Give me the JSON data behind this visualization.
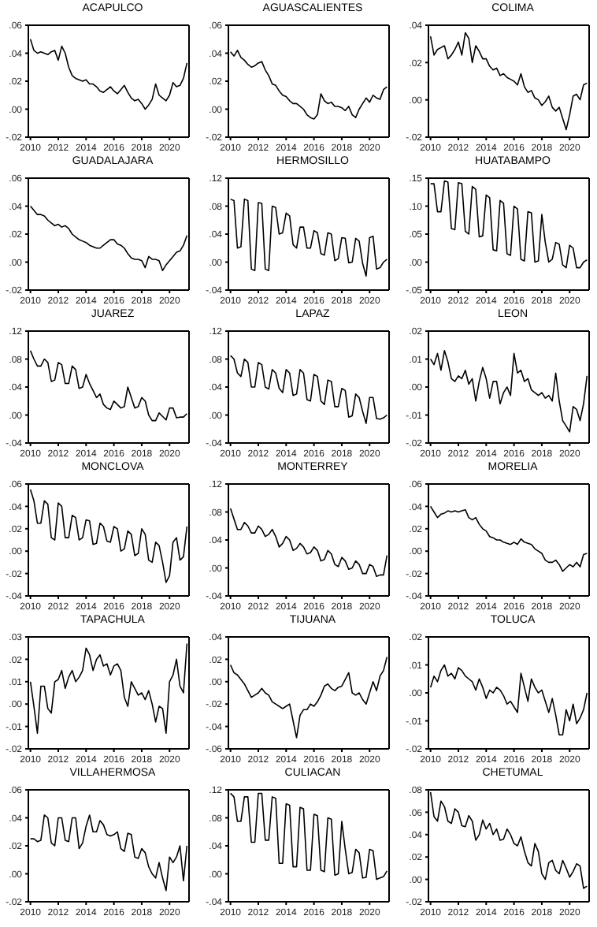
{
  "chart_data": [
    {
      "type": "line",
      "title": "ACAPULCO",
      "color": "#000000",
      "ylim": [
        -0.02,
        0.06
      ],
      "yticks": [
        {
          "value": -0.02,
          "label": "-.02"
        },
        {
          "value": 0,
          "label": ".00"
        },
        {
          "value": 0.02,
          "label": ".02"
        },
        {
          "value": 0.04,
          "label": ".04"
        },
        {
          "value": 0.06,
          "label": ".06"
        }
      ],
      "xlim": [
        2009.85,
        2021.4
      ],
      "xticks": [
        2010,
        2012,
        2014,
        2016,
        2018,
        2020
      ],
      "x": [
        2010,
        2010.25,
        2010.5,
        2010.75,
        2011,
        2011.25,
        2011.5,
        2011.75,
        2012,
        2012.25,
        2012.5,
        2012.75,
        2013,
        2013.25,
        2013.5,
        2013.75,
        2014,
        2014.25,
        2014.5,
        2014.75,
        2015,
        2015.25,
        2015.5,
        2015.75,
        2016,
        2016.25,
        2016.5,
        2016.75,
        2017,
        2017.25,
        2017.5,
        2017.75,
        2018,
        2018.25,
        2018.5,
        2018.75,
        2019,
        2019.25,
        2019.5,
        2019.75,
        2020,
        2020.25,
        2020.5,
        2020.75,
        2021,
        2021.25
      ],
      "values": [
        0.05,
        0.042,
        0.04,
        0.041,
        0.04,
        0.039,
        0.041,
        0.042,
        0.035,
        0.045,
        0.04,
        0.03,
        0.024,
        0.022,
        0.021,
        0.02,
        0.021,
        0.018,
        0.018,
        0.016,
        0.013,
        0.012,
        0.014,
        0.016,
        0.013,
        0.011,
        0.014,
        0.017,
        0.012,
        0.008,
        0.006,
        0.007,
        0.004,
        0,
        0.003,
        0.007,
        0.018,
        0.01,
        0.008,
        0.006,
        0.01,
        0.019,
        0.016,
        0.017,
        0.022,
        0.033
      ]
    },
    {
      "type": "line",
      "title": "AGUASCALIENTES",
      "color": "#000000",
      "ylim": [
        -0.02,
        0.06
      ],
      "yticks": [
        {
          "value": -0.02,
          "label": "-.02"
        },
        {
          "value": 0,
          "label": ".00"
        },
        {
          "value": 0.02,
          "label": ".02"
        },
        {
          "value": 0.04,
          "label": ".04"
        },
        {
          "value": 0.06,
          "label": ".06"
        }
      ],
      "xlim": [
        2009.85,
        2021.4
      ],
      "xticks": [
        2010,
        2012,
        2014,
        2016,
        2018,
        2020
      ],
      "x": [
        2010,
        2010.25,
        2010.5,
        2010.75,
        2011,
        2011.25,
        2011.5,
        2011.75,
        2012,
        2012.25,
        2012.5,
        2012.75,
        2013,
        2013.25,
        2013.5,
        2013.75,
        2014,
        2014.25,
        2014.5,
        2014.75,
        2015,
        2015.25,
        2015.5,
        2015.75,
        2016,
        2016.25,
        2016.5,
        2016.75,
        2017,
        2017.25,
        2017.5,
        2017.75,
        2018,
        2018.25,
        2018.5,
        2018.75,
        2019,
        2019.25,
        2019.5,
        2019.75,
        2020,
        2020.25,
        2020.5,
        2020.75,
        2021,
        2021.25
      ],
      "values": [
        0.041,
        0.038,
        0.042,
        0.037,
        0.035,
        0.032,
        0.03,
        0.031,
        0.033,
        0.034,
        0.028,
        0.024,
        0.018,
        0.017,
        0.013,
        0.01,
        0.009,
        0.006,
        0.004,
        0.004,
        0.002,
        0,
        -0.004,
        -0.006,
        -0.007,
        -0.004,
        0.011,
        0.006,
        0.004,
        0.005,
        0.002,
        0.002,
        0.001,
        -0.001,
        0.002,
        -0.004,
        -0.006,
        0,
        0.004,
        0.008,
        0.005,
        0.01,
        0.008,
        0.007,
        0.014,
        0.016
      ]
    },
    {
      "type": "line",
      "title": "COLIMA",
      "color": "#000000",
      "ylim": [
        -0.02,
        0.04
      ],
      "yticks": [
        {
          "value": -0.02,
          "label": "-.02"
        },
        {
          "value": 0,
          "label": ".00"
        },
        {
          "value": 0.02,
          "label": ".02"
        },
        {
          "value": 0.04,
          "label": ".04"
        }
      ],
      "xlim": [
        2009.85,
        2021.4
      ],
      "xticks": [
        2010,
        2012,
        2014,
        2016,
        2018,
        2020
      ],
      "x": [
        2010,
        2010.25,
        2010.5,
        2010.75,
        2011,
        2011.25,
        2011.5,
        2011.75,
        2012,
        2012.25,
        2012.5,
        2012.75,
        2013,
        2013.25,
        2013.5,
        2013.75,
        2014,
        2014.25,
        2014.5,
        2014.75,
        2015,
        2015.25,
        2015.5,
        2015.75,
        2016,
        2016.25,
        2016.5,
        2016.75,
        2017,
        2017.25,
        2017.5,
        2017.75,
        2018,
        2018.25,
        2018.5,
        2018.75,
        2019,
        2019.25,
        2019.5,
        2019.75,
        2020,
        2020.25,
        2020.5,
        2020.75,
        2021,
        2021.25
      ],
      "values": [
        0.034,
        0.024,
        0.027,
        0.028,
        0.029,
        0.022,
        0.024,
        0.027,
        0.031,
        0.024,
        0.036,
        0.033,
        0.02,
        0.029,
        0.026,
        0.022,
        0.022,
        0.018,
        0.016,
        0.017,
        0.013,
        0.014,
        0.012,
        0.011,
        0.01,
        0.008,
        0.014,
        0.007,
        0.004,
        0.005,
        0.001,
        0,
        -0.003,
        -0.001,
        0.002,
        -0.004,
        -0.006,
        -0.004,
        -0.01,
        -0.016,
        -0.008,
        0.002,
        0.003,
        0,
        0.008,
        0.009
      ]
    },
    {
      "type": "line",
      "title": "GUADALAJARA",
      "color": "#000000",
      "ylim": [
        -0.02,
        0.06
      ],
      "yticks": [
        {
          "value": -0.02,
          "label": "-.02"
        },
        {
          "value": 0,
          "label": ".00"
        },
        {
          "value": 0.02,
          "label": ".02"
        },
        {
          "value": 0.04,
          "label": ".04"
        },
        {
          "value": 0.06,
          "label": ".06"
        }
      ],
      "xlim": [
        2009.85,
        2021.4
      ],
      "xticks": [
        2010,
        2012,
        2014,
        2016,
        2018,
        2020
      ],
      "x": [
        2010,
        2010.25,
        2010.5,
        2010.75,
        2011,
        2011.25,
        2011.5,
        2011.75,
        2012,
        2012.25,
        2012.5,
        2012.75,
        2013,
        2013.25,
        2013.5,
        2013.75,
        2014,
        2014.25,
        2014.5,
        2014.75,
        2015,
        2015.25,
        2015.5,
        2015.75,
        2016,
        2016.25,
        2016.5,
        2016.75,
        2017,
        2017.25,
        2017.5,
        2017.75,
        2018,
        2018.25,
        2018.5,
        2018.75,
        2019,
        2019.25,
        2019.5,
        2019.75,
        2020,
        2020.25,
        2020.5,
        2020.75,
        2021,
        2021.25
      ],
      "values": [
        0.04,
        0.037,
        0.034,
        0.034,
        0.033,
        0.03,
        0.028,
        0.026,
        0.027,
        0.025,
        0.026,
        0.024,
        0.02,
        0.018,
        0.016,
        0.015,
        0.014,
        0.012,
        0.011,
        0.01,
        0.01,
        0.012,
        0.014,
        0.016,
        0.016,
        0.013,
        0.012,
        0.01,
        0.006,
        0.003,
        0.002,
        0.002,
        0.001,
        -0.004,
        0.004,
        0.002,
        0.002,
        0.001,
        -0.006,
        -0.002,
        0.001,
        0.004,
        0.007,
        0.008,
        0.012,
        0.019
      ]
    },
    {
      "type": "line",
      "title": "HERMOSILLO",
      "color": "#000000",
      "ylim": [
        -0.04,
        0.12
      ],
      "yticks": [
        {
          "value": -0.04,
          "label": "-.04"
        },
        {
          "value": 0,
          "label": ".00"
        },
        {
          "value": 0.04,
          "label": ".04"
        },
        {
          "value": 0.08,
          "label": ".08"
        },
        {
          "value": 0.12,
          "label": ".12"
        }
      ],
      "xlim": [
        2009.85,
        2021.4
      ],
      "xticks": [
        2010,
        2012,
        2014,
        2016,
        2018,
        2020
      ],
      "x": [
        2010,
        2010.25,
        2010.5,
        2010.75,
        2011,
        2011.25,
        2011.5,
        2011.75,
        2012,
        2012.25,
        2012.5,
        2012.75,
        2013,
        2013.25,
        2013.5,
        2013.75,
        2014,
        2014.25,
        2014.5,
        2014.75,
        2015,
        2015.25,
        2015.5,
        2015.75,
        2016,
        2016.25,
        2016.5,
        2016.75,
        2017,
        2017.25,
        2017.5,
        2017.75,
        2018,
        2018.25,
        2018.5,
        2018.75,
        2019,
        2019.25,
        2019.5,
        2019.75,
        2020,
        2020.25,
        2020.5,
        2020.75,
        2021,
        2021.25
      ],
      "values": [
        0.09,
        0.088,
        0.02,
        0.022,
        0.09,
        0.088,
        -0.01,
        -0.012,
        0.085,
        0.084,
        -0.01,
        -0.012,
        0.08,
        0.078,
        0.04,
        0.042,
        0.07,
        0.066,
        0.025,
        0.02,
        0.05,
        0.05,
        0.02,
        0.02,
        0.045,
        0.042,
        0.012,
        0.01,
        0.042,
        0.04,
        0.002,
        0.005,
        0.035,
        0.034,
        -0.001,
        0,
        0.034,
        0.03,
        -0.002,
        -0.02,
        0.035,
        0.037,
        -0.01,
        -0.008,
        0,
        0.004
      ]
    },
    {
      "type": "line",
      "title": "HUATABAMPO",
      "color": "#000000",
      "ylim": [
        -0.05,
        0.15
      ],
      "yticks": [
        {
          "value": -0.05,
          "label": "-.05"
        },
        {
          "value": 0,
          "label": ".00"
        },
        {
          "value": 0.05,
          "label": ".05"
        },
        {
          "value": 0.1,
          "label": ".10"
        },
        {
          "value": 0.15,
          "label": ".15"
        }
      ],
      "xlim": [
        2009.85,
        2021.4
      ],
      "xticks": [
        2010,
        2012,
        2014,
        2016,
        2018,
        2020
      ],
      "x": [
        2010,
        2010.25,
        2010.5,
        2010.75,
        2011,
        2011.25,
        2011.5,
        2011.75,
        2012,
        2012.25,
        2012.5,
        2012.75,
        2013,
        2013.25,
        2013.5,
        2013.75,
        2014,
        2014.25,
        2014.5,
        2014.75,
        2015,
        2015.25,
        2015.5,
        2015.75,
        2016,
        2016.25,
        2016.5,
        2016.75,
        2017,
        2017.25,
        2017.5,
        2017.75,
        2018,
        2018.25,
        2018.5,
        2018.75,
        2019,
        2019.25,
        2019.5,
        2019.75,
        2020,
        2020.25,
        2020.5,
        2020.75,
        2021,
        2021.25
      ],
      "values": [
        0.14,
        0.14,
        0.09,
        0.09,
        0.145,
        0.143,
        0.06,
        0.058,
        0.142,
        0.14,
        0.055,
        0.05,
        0.135,
        0.13,
        0.045,
        0.047,
        0.12,
        0.115,
        0.022,
        0.02,
        0.11,
        0.105,
        0.015,
        0.012,
        0.1,
        0.095,
        0.005,
        0.002,
        0.09,
        0.088,
        0,
        0.002,
        0.085,
        0.035,
        0,
        0.005,
        0.035,
        0.032,
        -0.005,
        -0.01,
        0.03,
        0.025,
        -0.01,
        -0.01,
        0,
        0.004
      ]
    },
    {
      "type": "line",
      "title": "JUAREZ",
      "color": "#000000",
      "ylim": [
        -0.04,
        0.12
      ],
      "yticks": [
        {
          "value": -0.04,
          "label": "-.04"
        },
        {
          "value": 0,
          "label": ".00"
        },
        {
          "value": 0.04,
          "label": ".04"
        },
        {
          "value": 0.08,
          "label": ".08"
        },
        {
          "value": 0.12,
          "label": ".12"
        }
      ],
      "xlim": [
        2009.85,
        2021.4
      ],
      "xticks": [
        2010,
        2012,
        2014,
        2016,
        2018,
        2020
      ],
      "x": [
        2010,
        2010.25,
        2010.5,
        2010.75,
        2011,
        2011.25,
        2011.5,
        2011.75,
        2012,
        2012.25,
        2012.5,
        2012.75,
        2013,
        2013.25,
        2013.5,
        2013.75,
        2014,
        2014.25,
        2014.5,
        2014.75,
        2015,
        2015.25,
        2015.5,
        2015.75,
        2016,
        2016.25,
        2016.5,
        2016.75,
        2017,
        2017.25,
        2017.5,
        2017.75,
        2018,
        2018.25,
        2018.5,
        2018.75,
        2019,
        2019.25,
        2019.5,
        2019.75,
        2020,
        2020.25,
        2020.5,
        2020.75,
        2021,
        2021.25
      ],
      "values": [
        0.092,
        0.08,
        0.07,
        0.07,
        0.08,
        0.075,
        0.048,
        0.05,
        0.075,
        0.072,
        0.045,
        0.045,
        0.07,
        0.065,
        0.038,
        0.04,
        0.058,
        0.045,
        0.035,
        0.025,
        0.03,
        0.015,
        0.01,
        0.008,
        0.02,
        0.015,
        0.01,
        0.012,
        0.04,
        0.025,
        0.01,
        0.012,
        0.025,
        0.02,
        0,
        -0.008,
        -0.008,
        0.003,
        -0.002,
        -0.007,
        0.01,
        0.01,
        -0.004,
        -0.003,
        -0.003,
        0.002
      ]
    },
    {
      "type": "line",
      "title": "LAPAZ",
      "color": "#000000",
      "ylim": [
        -0.04,
        0.12
      ],
      "yticks": [
        {
          "value": -0.04,
          "label": "-.04"
        },
        {
          "value": 0,
          "label": ".00"
        },
        {
          "value": 0.04,
          "label": ".04"
        },
        {
          "value": 0.08,
          "label": ".08"
        },
        {
          "value": 0.12,
          "label": ".12"
        }
      ],
      "xlim": [
        2009.85,
        2021.4
      ],
      "xticks": [
        2010,
        2012,
        2014,
        2016,
        2018,
        2020
      ],
      "x": [
        2010,
        2010.25,
        2010.5,
        2010.75,
        2011,
        2011.25,
        2011.5,
        2011.75,
        2012,
        2012.25,
        2012.5,
        2012.75,
        2013,
        2013.25,
        2013.5,
        2013.75,
        2014,
        2014.25,
        2014.5,
        2014.75,
        2015,
        2015.25,
        2015.5,
        2015.75,
        2016,
        2016.25,
        2016.5,
        2016.75,
        2017,
        2017.25,
        2017.5,
        2017.75,
        2018,
        2018.25,
        2018.5,
        2018.75,
        2019,
        2019.25,
        2019.5,
        2019.75,
        2020,
        2020.25,
        2020.5,
        2020.75,
        2021,
        2021.25
      ],
      "values": [
        0.085,
        0.08,
        0.06,
        0.055,
        0.08,
        0.075,
        0.04,
        0.04,
        0.075,
        0.072,
        0.04,
        0.037,
        0.065,
        0.06,
        0.038,
        0.032,
        0.065,
        0.06,
        0.028,
        0.03,
        0.065,
        0.06,
        0.022,
        0.02,
        0.058,
        0.055,
        0.02,
        0.015,
        0.05,
        0.048,
        0.012,
        0.012,
        0.038,
        0.035,
        -0.003,
        -0.001,
        0.03,
        0.025,
        0.005,
        -0.012,
        0.025,
        0.025,
        -0.005,
        -0.006,
        -0.004,
        0
      ]
    },
    {
      "type": "line",
      "title": "LEON",
      "color": "#000000",
      "ylim": [
        -0.02,
        0.02
      ],
      "yticks": [
        {
          "value": -0.02,
          "label": "-.02"
        },
        {
          "value": -0.01,
          "label": "-.01"
        },
        {
          "value": 0,
          "label": ".00"
        },
        {
          "value": 0.01,
          "label": ".01"
        },
        {
          "value": 0.02,
          "label": ".02"
        }
      ],
      "xlim": [
        2009.85,
        2021.4
      ],
      "xticks": [
        2010,
        2012,
        2014,
        2016,
        2018,
        2020
      ],
      "x": [
        2010,
        2010.25,
        2010.5,
        2010.75,
        2011,
        2011.25,
        2011.5,
        2011.75,
        2012,
        2012.25,
        2012.5,
        2012.75,
        2013,
        2013.25,
        2013.5,
        2013.75,
        2014,
        2014.25,
        2014.5,
        2014.75,
        2015,
        2015.25,
        2015.5,
        2015.75,
        2016,
        2016.25,
        2016.5,
        2016.75,
        2017,
        2017.25,
        2017.5,
        2017.75,
        2018,
        2018.25,
        2018.5,
        2018.75,
        2019,
        2019.25,
        2019.5,
        2019.75,
        2020,
        2020.25,
        2020.5,
        2020.75,
        2021,
        2021.25
      ],
      "values": [
        0.01,
        0.008,
        0.012,
        0.006,
        0.013,
        0.009,
        0.003,
        0.002,
        0.004,
        0.003,
        0.006,
        0.001,
        0.003,
        -0.005,
        0.002,
        0.007,
        0.003,
        -0.004,
        0.002,
        0.002,
        -0.006,
        -0.002,
        0,
        -0.003,
        0.012,
        0.005,
        0.006,
        0.002,
        0.003,
        -0.001,
        -0.002,
        -0.003,
        -0.002,
        -0.004,
        -0.003,
        -0.005,
        0.005,
        -0.005,
        -0.012,
        -0.014,
        -0.016,
        -0.007,
        -0.008,
        -0.012,
        -0.006,
        0.004
      ]
    },
    {
      "type": "line",
      "title": "MONCLOVA",
      "color": "#000000",
      "ylim": [
        -0.04,
        0.06
      ],
      "yticks": [
        {
          "value": -0.04,
          "label": "-.04"
        },
        {
          "value": -0.02,
          "label": "-.02"
        },
        {
          "value": 0,
          "label": ".00"
        },
        {
          "value": 0.02,
          "label": ".02"
        },
        {
          "value": 0.04,
          "label": ".04"
        },
        {
          "value": 0.06,
          "label": ".06"
        }
      ],
      "xlim": [
        2009.85,
        2021.4
      ],
      "xticks": [
        2010,
        2012,
        2014,
        2016,
        2018,
        2020
      ],
      "x": [
        2010,
        2010.25,
        2010.5,
        2010.75,
        2011,
        2011.25,
        2011.5,
        2011.75,
        2012,
        2012.25,
        2012.5,
        2012.75,
        2013,
        2013.25,
        2013.5,
        2013.75,
        2014,
        2014.25,
        2014.5,
        2014.75,
        2015,
        2015.25,
        2015.5,
        2015.75,
        2016,
        2016.25,
        2016.5,
        2016.75,
        2017,
        2017.25,
        2017.5,
        2017.75,
        2018,
        2018.25,
        2018.5,
        2018.75,
        2019,
        2019.25,
        2019.5,
        2019.75,
        2020,
        2020.25,
        2020.5,
        2020.75,
        2021,
        2021.25
      ],
      "values": [
        0.055,
        0.045,
        0.025,
        0.025,
        0.045,
        0.042,
        0.012,
        0.01,
        0.043,
        0.04,
        0.012,
        0.012,
        0.032,
        0.03,
        0.01,
        0.012,
        0.028,
        0.027,
        0.006,
        0.007,
        0.025,
        0.022,
        0.009,
        0.008,
        0.022,
        0.02,
        0,
        0.002,
        0.018,
        0.015,
        -0.004,
        -0.002,
        0.02,
        0.015,
        -0.008,
        -0.01,
        0.008,
        0.005,
        -0.01,
        -0.028,
        -0.022,
        0.008,
        0.012,
        -0.008,
        -0.005,
        0.022
      ]
    },
    {
      "type": "line",
      "title": "MONTERREY",
      "color": "#000000",
      "ylim": [
        -0.04,
        0.12
      ],
      "yticks": [
        {
          "value": -0.04,
          "label": "-.04"
        },
        {
          "value": 0,
          "label": ".00"
        },
        {
          "value": 0.04,
          "label": ".04"
        },
        {
          "value": 0.08,
          "label": ".08"
        },
        {
          "value": 0.12,
          "label": ".12"
        }
      ],
      "xlim": [
        2009.85,
        2021.4
      ],
      "xticks": [
        2010,
        2012,
        2014,
        2016,
        2018,
        2020
      ],
      "x": [
        2010,
        2010.25,
        2010.5,
        2010.75,
        2011,
        2011.25,
        2011.5,
        2011.75,
        2012,
        2012.25,
        2012.5,
        2012.75,
        2013,
        2013.25,
        2013.5,
        2013.75,
        2014,
        2014.25,
        2014.5,
        2014.75,
        2015,
        2015.25,
        2015.5,
        2015.75,
        2016,
        2016.25,
        2016.5,
        2016.75,
        2017,
        2017.25,
        2017.5,
        2017.75,
        2018,
        2018.25,
        2018.5,
        2018.75,
        2019,
        2019.25,
        2019.5,
        2019.75,
        2020,
        2020.25,
        2020.5,
        2020.75,
        2021,
        2021.25
      ],
      "values": [
        0.085,
        0.07,
        0.055,
        0.055,
        0.065,
        0.06,
        0.05,
        0.05,
        0.06,
        0.055,
        0.045,
        0.048,
        0.055,
        0.045,
        0.03,
        0.035,
        0.045,
        0.04,
        0.025,
        0.028,
        0.035,
        0.03,
        0.02,
        0.022,
        0.03,
        0.025,
        0.01,
        0.012,
        0.025,
        0.02,
        0.005,
        0.002,
        0.015,
        0.01,
        -0.002,
        0,
        0.01,
        0.005,
        -0.008,
        -0.008,
        0.005,
        0.002,
        -0.012,
        -0.01,
        -0.01,
        0.018
      ]
    },
    {
      "type": "line",
      "title": "MORELIA",
      "color": "#000000",
      "ylim": [
        -0.04,
        0.06
      ],
      "yticks": [
        {
          "value": -0.04,
          "label": "-.04"
        },
        {
          "value": -0.02,
          "label": "-.02"
        },
        {
          "value": 0,
          "label": ".00"
        },
        {
          "value": 0.02,
          "label": ".02"
        },
        {
          "value": 0.04,
          "label": ".04"
        },
        {
          "value": 0.06,
          "label": ".06"
        }
      ],
      "xlim": [
        2009.85,
        2021.4
      ],
      "xticks": [
        2010,
        2012,
        2014,
        2016,
        2018,
        2020
      ],
      "x": [
        2010,
        2010.25,
        2010.5,
        2010.75,
        2011,
        2011.25,
        2011.5,
        2011.75,
        2012,
        2012.25,
        2012.5,
        2012.75,
        2013,
        2013.25,
        2013.5,
        2013.75,
        2014,
        2014.25,
        2014.5,
        2014.75,
        2015,
        2015.25,
        2015.5,
        2015.75,
        2016,
        2016.25,
        2016.5,
        2016.75,
        2017,
        2017.25,
        2017.5,
        2017.75,
        2018,
        2018.25,
        2018.5,
        2018.75,
        2019,
        2019.25,
        2019.5,
        2019.75,
        2020,
        2020.25,
        2020.5,
        2020.75,
        2021,
        2021.25
      ],
      "values": [
        0.04,
        0.035,
        0.03,
        0.033,
        0.034,
        0.036,
        0.035,
        0.036,
        0.035,
        0.036,
        0.037,
        0.03,
        0.028,
        0.03,
        0.024,
        0.02,
        0.018,
        0.013,
        0.012,
        0.01,
        0.01,
        0.008,
        0.007,
        0.006,
        0.008,
        0.006,
        0.011,
        0.008,
        0.007,
        0.006,
        0.002,
        0,
        -0.002,
        -0.008,
        -0.01,
        -0.01,
        -0.008,
        -0.012,
        -0.018,
        -0.015,
        -0.012,
        -0.014,
        -0.01,
        -0.014,
        -0.003,
        -0.002
      ]
    },
    {
      "type": "line",
      "title": "TAPACHULA",
      "color": "#000000",
      "ylim": [
        -0.02,
        0.03
      ],
      "yticks": [
        {
          "value": -0.02,
          "label": "-.02"
        },
        {
          "value": -0.01,
          "label": "-.01"
        },
        {
          "value": 0,
          "label": ".00"
        },
        {
          "value": 0.01,
          "label": ".01"
        },
        {
          "value": 0.02,
          "label": ".02"
        },
        {
          "value": 0.03,
          "label": ".03"
        }
      ],
      "xlim": [
        2009.85,
        2021.4
      ],
      "xticks": [
        2010,
        2012,
        2014,
        2016,
        2018,
        2020
      ],
      "x": [
        2010,
        2010.25,
        2010.5,
        2010.75,
        2011,
        2011.25,
        2011.5,
        2011.75,
        2012,
        2012.25,
        2012.5,
        2012.75,
        2013,
        2013.25,
        2013.5,
        2013.75,
        2014,
        2014.25,
        2014.5,
        2014.75,
        2015,
        2015.25,
        2015.5,
        2015.75,
        2016,
        2016.25,
        2016.5,
        2016.75,
        2017,
        2017.25,
        2017.5,
        2017.75,
        2018,
        2018.25,
        2018.5,
        2018.75,
        2019,
        2019.25,
        2019.5,
        2019.75,
        2020,
        2020.25,
        2020.5,
        2020.75,
        2021,
        2021.25
      ],
      "values": [
        0.01,
        -0.001,
        -0.013,
        0.008,
        0.008,
        -0.002,
        -0.004,
        0.01,
        0.011,
        0.015,
        0.007,
        0.012,
        0.015,
        0.01,
        0.012,
        0.015,
        0.025,
        0.022,
        0.015,
        0.02,
        0.022,
        0.017,
        0.018,
        0.013,
        0.017,
        0.018,
        0.015,
        0.003,
        -0.001,
        0.01,
        0.007,
        0.004,
        0.005,
        0.002,
        0.006,
        0,
        -0.008,
        -0.001,
        -0.002,
        -0.013,
        0.01,
        0.013,
        0.02,
        0.008,
        0.005,
        0.027
      ]
    },
    {
      "type": "line",
      "title": "TIJUANA",
      "color": "#000000",
      "ylim": [
        -0.06,
        0.04
      ],
      "yticks": [
        {
          "value": -0.06,
          "label": "-.06"
        },
        {
          "value": -0.04,
          "label": "-.04"
        },
        {
          "value": -0.02,
          "label": "-.02"
        },
        {
          "value": 0,
          "label": ".00"
        },
        {
          "value": 0.02,
          "label": ".02"
        },
        {
          "value": 0.04,
          "label": ".04"
        }
      ],
      "xlim": [
        2009.85,
        2021.4
      ],
      "xticks": [
        2010,
        2012,
        2014,
        2016,
        2018,
        2020
      ],
      "x": [
        2010,
        2010.25,
        2010.5,
        2010.75,
        2011,
        2011.25,
        2011.5,
        2011.75,
        2012,
        2012.25,
        2012.5,
        2012.75,
        2013,
        2013.25,
        2013.5,
        2013.75,
        2014,
        2014.25,
        2014.5,
        2014.75,
        2015,
        2015.25,
        2015.5,
        2015.75,
        2016,
        2016.25,
        2016.5,
        2016.75,
        2017,
        2017.25,
        2017.5,
        2017.75,
        2018,
        2018.25,
        2018.5,
        2018.75,
        2019,
        2019.25,
        2019.5,
        2019.75,
        2020,
        2020.25,
        2020.5,
        2020.75,
        2021,
        2021.25
      ],
      "values": [
        0.015,
        0.008,
        0.006,
        0.002,
        -0.002,
        -0.008,
        -0.014,
        -0.012,
        -0.01,
        -0.006,
        -0.01,
        -0.012,
        -0.018,
        -0.02,
        -0.022,
        -0.024,
        -0.022,
        -0.02,
        -0.035,
        -0.05,
        -0.03,
        -0.025,
        -0.025,
        -0.02,
        -0.022,
        -0.018,
        -0.012,
        -0.004,
        -0.002,
        -0.006,
        -0.008,
        -0.005,
        -0.004,
        0.002,
        0.008,
        -0.01,
        -0.012,
        -0.01,
        -0.016,
        -0.02,
        -0.01,
        0,
        -0.008,
        0.005,
        0.01,
        0.022
      ]
    },
    {
      "type": "line",
      "title": "TOLUCA",
      "color": "#000000",
      "ylim": [
        -0.02,
        0.02
      ],
      "yticks": [
        {
          "value": -0.02,
          "label": "-.02"
        },
        {
          "value": -0.01,
          "label": "-.01"
        },
        {
          "value": 0,
          "label": ".00"
        },
        {
          "value": 0.01,
          "label": ".01"
        },
        {
          "value": 0.02,
          "label": ".02"
        }
      ],
      "xlim": [
        2009.85,
        2021.4
      ],
      "xticks": [
        2010,
        2012,
        2014,
        2016,
        2018,
        2020
      ],
      "x": [
        2010,
        2010.25,
        2010.5,
        2010.75,
        2011,
        2011.25,
        2011.5,
        2011.75,
        2012,
        2012.25,
        2012.5,
        2012.75,
        2013,
        2013.25,
        2013.5,
        2013.75,
        2014,
        2014.25,
        2014.5,
        2014.75,
        2015,
        2015.25,
        2015.5,
        2015.75,
        2016,
        2016.25,
        2016.5,
        2016.75,
        2017,
        2017.25,
        2017.5,
        2017.75,
        2018,
        2018.25,
        2018.5,
        2018.75,
        2019,
        2019.25,
        2019.5,
        2019.75,
        2020,
        2020.25,
        2020.5,
        2020.75,
        2021,
        2021.25
      ],
      "values": [
        0.002,
        0.006,
        0.004,
        0.008,
        0.01,
        0.006,
        0.007,
        0.005,
        0.009,
        0.008,
        0.006,
        0.005,
        0.004,
        0.001,
        0.005,
        0.002,
        -0.002,
        0.001,
        0,
        0.002,
        0.001,
        -0.001,
        -0.004,
        -0.003,
        -0.005,
        -0.007,
        0.007,
        0.002,
        -0.003,
        0.005,
        0.002,
        0,
        0.001,
        -0.003,
        -0.007,
        -0.002,
        -0.008,
        -0.015,
        -0.015,
        -0.006,
        -0.01,
        -0.004,
        -0.011,
        -0.009,
        -0.006,
        0
      ]
    },
    {
      "type": "line",
      "title": "VILLAHERMOSA",
      "color": "#000000",
      "ylim": [
        -0.02,
        0.06
      ],
      "yticks": [
        {
          "value": -0.02,
          "label": "-.02"
        },
        {
          "value": 0,
          "label": ".00"
        },
        {
          "value": 0.02,
          "label": ".02"
        },
        {
          "value": 0.04,
          "label": ".04"
        },
        {
          "value": 0.06,
          "label": ".06"
        }
      ],
      "xlim": [
        2009.85,
        2021.4
      ],
      "xticks": [
        2010,
        2012,
        2014,
        2016,
        2018,
        2020
      ],
      "x": [
        2010,
        2010.25,
        2010.5,
        2010.75,
        2011,
        2011.25,
        2011.5,
        2011.75,
        2012,
        2012.25,
        2012.5,
        2012.75,
        2013,
        2013.25,
        2013.5,
        2013.75,
        2014,
        2014.25,
        2014.5,
        2014.75,
        2015,
        2015.25,
        2015.5,
        2015.75,
        2016,
        2016.25,
        2016.5,
        2016.75,
        2017,
        2017.25,
        2017.5,
        2017.75,
        2018,
        2018.25,
        2018.5,
        2018.75,
        2019,
        2019.25,
        2019.5,
        2019.75,
        2020,
        2020.25,
        2020.5,
        2020.75,
        2021,
        2021.25
      ],
      "values": [
        0.025,
        0.025,
        0.023,
        0.024,
        0.042,
        0.04,
        0.022,
        0.02,
        0.04,
        0.04,
        0.024,
        0.023,
        0.04,
        0.04,
        0.018,
        0.022,
        0.034,
        0.042,
        0.03,
        0.03,
        0.038,
        0.035,
        0.028,
        0.027,
        0.028,
        0.03,
        0.018,
        0.016,
        0.029,
        0.028,
        0.012,
        0.011,
        0.018,
        0.015,
        0.005,
        0,
        -0.003,
        0.008,
        -0.003,
        -0.012,
        0.012,
        0.008,
        0.012,
        0.02,
        -0.005,
        0.02
      ]
    },
    {
      "type": "line",
      "title": "CULIACAN",
      "color": "#000000",
      "ylim": [
        -0.04,
        0.12
      ],
      "yticks": [
        {
          "value": -0.04,
          "label": "-.04"
        },
        {
          "value": 0,
          "label": ".00"
        },
        {
          "value": 0.04,
          "label": ".04"
        },
        {
          "value": 0.08,
          "label": ".08"
        },
        {
          "value": 0.12,
          "label": ".12"
        }
      ],
      "xlim": [
        2009.85,
        2021.4
      ],
      "xticks": [
        2010,
        2012,
        2014,
        2016,
        2018,
        2020
      ],
      "x": [
        2010,
        2010.25,
        2010.5,
        2010.75,
        2011,
        2011.25,
        2011.5,
        2011.75,
        2012,
        2012.25,
        2012.5,
        2012.75,
        2013,
        2013.25,
        2013.5,
        2013.75,
        2014,
        2014.25,
        2014.5,
        2014.75,
        2015,
        2015.25,
        2015.5,
        2015.75,
        2016,
        2016.25,
        2016.5,
        2016.75,
        2017,
        2017.25,
        2017.5,
        2017.75,
        2018,
        2018.25,
        2018.5,
        2018.75,
        2019,
        2019.25,
        2019.5,
        2019.75,
        2020,
        2020.25,
        2020.5,
        2020.75,
        2021,
        2021.25
      ],
      "values": [
        0.115,
        0.11,
        0.075,
        0.075,
        0.11,
        0.11,
        0.045,
        0.045,
        0.115,
        0.115,
        0.048,
        0.048,
        0.11,
        0.108,
        0.015,
        0.015,
        0.1,
        0.098,
        0.01,
        0.01,
        0.095,
        0.093,
        0.005,
        0.005,
        0.085,
        0.083,
        0.005,
        0.003,
        0.08,
        0.078,
        -0.002,
        0,
        0.075,
        0.035,
        0,
        0.002,
        0.035,
        0.03,
        -0.006,
        -0.005,
        0.035,
        0.033,
        -0.008,
        -0.006,
        -0.004,
        0.004
      ]
    },
    {
      "type": "line",
      "title": "CHETUMAL",
      "color": "#000000",
      "ylim": [
        -0.02,
        0.08
      ],
      "yticks": [
        {
          "value": -0.02,
          "label": "-.02"
        },
        {
          "value": 0,
          "label": ".00"
        },
        {
          "value": 0.02,
          "label": ".02"
        },
        {
          "value": 0.04,
          "label": ".04"
        },
        {
          "value": 0.06,
          "label": ".06"
        },
        {
          "value": 0.08,
          "label": ".08"
        }
      ],
      "xlim": [
        2009.85,
        2021.4
      ],
      "xticks": [
        2010,
        2012,
        2014,
        2016,
        2018,
        2020
      ],
      "x": [
        2010,
        2010.25,
        2010.5,
        2010.75,
        2011,
        2011.25,
        2011.5,
        2011.75,
        2012,
        2012.25,
        2012.5,
        2012.75,
        2013,
        2013.25,
        2013.5,
        2013.75,
        2014,
        2014.25,
        2014.5,
        2014.75,
        2015,
        2015.25,
        2015.5,
        2015.75,
        2016,
        2016.25,
        2016.5,
        2016.75,
        2017,
        2017.25,
        2017.5,
        2017.75,
        2018,
        2018.25,
        2018.5,
        2018.75,
        2019,
        2019.25,
        2019.5,
        2019.75,
        2020,
        2020.25,
        2020.5,
        2020.75,
        2021,
        2021.25
      ],
      "values": [
        0.078,
        0.056,
        0.052,
        0.07,
        0.065,
        0.052,
        0.05,
        0.063,
        0.06,
        0.048,
        0.047,
        0.057,
        0.052,
        0.035,
        0.04,
        0.053,
        0.045,
        0.05,
        0.04,
        0.045,
        0.035,
        0.036,
        0.045,
        0.04,
        0.032,
        0.03,
        0.038,
        0.025,
        0.015,
        0.012,
        0.032,
        0.025,
        0.005,
        0,
        0.015,
        0.017,
        0.008,
        0.005,
        0.017,
        0.01,
        0.002,
        0.007,
        0.014,
        0.012,
        -0.008,
        -0.006
      ]
    }
  ]
}
